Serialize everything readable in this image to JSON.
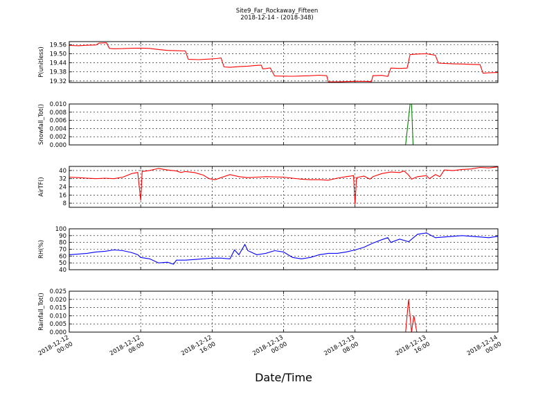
{
  "figure": {
    "title": "Site9_Far_Rockaway_Fifteen",
    "subtitle": "2018-12-14 - (2018-348)",
    "xlabel": "Date/Time"
  },
  "chart_data": {
    "type": "line",
    "title": "Site9_Far_Rockaway_Fifteen",
    "subtitle": "2018-12-14 - (2018-348)",
    "xlabel": "Date/Time",
    "x_range": [
      "2018-12-12 00:00",
      "2018-12-14 00:00"
    ],
    "x_ticks": [
      {
        "label_line1": "2018-12-12",
        "label_line2": "00:00",
        "value": "2018-12-12 00:00"
      },
      {
        "label_line1": "2018-12-12",
        "label_line2": "08:00",
        "value": "2018-12-12 08:00"
      },
      {
        "label_line1": "2018-12-12",
        "label_line2": "16:00",
        "value": "2018-12-12 16:00"
      },
      {
        "label_line1": "2018-12-13",
        "label_line2": "00:00",
        "value": "2018-12-13 00:00"
      },
      {
        "label_line1": "2018-12-13",
        "label_line2": "08:00",
        "value": "2018-12-13 08:00"
      },
      {
        "label_line1": "2018-12-13",
        "label_line2": "16:00",
        "value": "2018-12-13 16:00"
      },
      {
        "label_line1": "2018-12-14",
        "label_line2": "00:00",
        "value": "2018-12-14 00:00"
      }
    ],
    "grid": true,
    "panels": [
      {
        "ylabel": "P(unitless)",
        "color": "#ff0000",
        "ylim": [
          19.31,
          19.58
        ],
        "yticks": [
          19.32,
          19.38,
          19.44,
          19.5,
          19.56
        ],
        "ytick_labels": [
          "19.32",
          "19.38",
          "19.44",
          "19.50",
          "19.56"
        ],
        "points": [
          [
            "2018-12-12 00:00",
            19.555
          ],
          [
            "2018-12-12 01:00",
            19.553
          ],
          [
            "2018-12-12 02:00",
            19.556
          ],
          [
            "2018-12-12 03:00",
            19.558
          ],
          [
            "2018-12-12 03:20",
            19.57
          ],
          [
            "2018-12-12 04:10",
            19.572
          ],
          [
            "2018-12-12 04:30",
            19.535
          ],
          [
            "2018-12-12 05:00",
            19.533
          ],
          [
            "2018-12-12 06:00",
            19.534
          ],
          [
            "2018-12-12 07:00",
            19.536
          ],
          [
            "2018-12-12 08:00",
            19.537
          ],
          [
            "2018-12-12 09:00",
            19.535
          ],
          [
            "2018-12-12 10:00",
            19.528
          ],
          [
            "2018-12-12 11:00",
            19.522
          ],
          [
            "2018-12-12 12:00",
            19.52
          ],
          [
            "2018-12-12 13:00",
            19.518
          ],
          [
            "2018-12-12 13:20",
            19.463
          ],
          [
            "2018-12-12 14:30",
            19.461
          ],
          [
            "2018-12-12 15:30",
            19.464
          ],
          [
            "2018-12-12 16:30",
            19.468
          ],
          [
            "2018-12-12 17:00",
            19.472
          ],
          [
            "2018-12-12 17:20",
            19.413
          ],
          [
            "2018-12-12 18:00",
            19.41
          ],
          [
            "2018-12-12 19:00",
            19.415
          ],
          [
            "2018-12-12 20:00",
            19.418
          ],
          [
            "2018-12-12 21:00",
            19.423
          ],
          [
            "2018-12-12 21:30",
            19.425
          ],
          [
            "2018-12-12 21:40",
            19.4
          ],
          [
            "2018-12-12 22:00",
            19.402
          ],
          [
            "2018-12-12 22:30",
            19.406
          ],
          [
            "2018-12-12 23:00",
            19.353
          ],
          [
            "2018-12-13 00:00",
            19.352
          ],
          [
            "2018-12-13 01:00",
            19.351
          ],
          [
            "2018-12-13 02:00",
            19.353
          ],
          [
            "2018-12-13 03:00",
            19.355
          ],
          [
            "2018-12-13 04:00",
            19.358
          ],
          [
            "2018-12-13 04:50",
            19.355
          ],
          [
            "2018-12-13 05:00",
            19.315
          ],
          [
            "2018-12-13 06:00",
            19.314
          ],
          [
            "2018-12-13 07:00",
            19.316
          ],
          [
            "2018-12-13 08:00",
            19.318
          ],
          [
            "2018-12-13 09:00",
            19.318
          ],
          [
            "2018-12-13 09:50",
            19.316
          ],
          [
            "2018-12-13 10:00",
            19.355
          ],
          [
            "2018-12-13 11:00",
            19.357
          ],
          [
            "2018-12-13 11:40",
            19.35
          ],
          [
            "2018-12-13 12:00",
            19.405
          ],
          [
            "2018-12-13 13:00",
            19.403
          ],
          [
            "2018-12-13 13:50",
            19.405
          ],
          [
            "2018-12-13 14:10",
            19.495
          ],
          [
            "2018-12-13 15:00",
            19.498
          ],
          [
            "2018-12-13 16:00",
            19.5
          ],
          [
            "2018-12-13 16:30",
            19.495
          ],
          [
            "2018-12-13 17:00",
            19.49
          ],
          [
            "2018-12-13 17:20",
            19.438
          ],
          [
            "2018-12-13 18:00",
            19.436
          ],
          [
            "2018-12-13 19:00",
            19.433
          ],
          [
            "2018-12-13 20:00",
            19.432
          ],
          [
            "2018-12-13 21:00",
            19.43
          ],
          [
            "2018-12-13 22:00",
            19.428
          ],
          [
            "2018-12-13 22:20",
            19.372
          ],
          [
            "2018-12-13 23:00",
            19.374
          ],
          [
            "2018-12-14 00:00",
            19.376
          ]
        ]
      },
      {
        "ylabel": "Snowfall_Tot()",
        "color": "#008000",
        "ylim": [
          0.0,
          0.01
        ],
        "yticks": [
          0.0,
          0.002,
          0.004,
          0.006,
          0.008,
          0.01
        ],
        "ytick_labels": [
          "0.000",
          "0.002",
          "0.004",
          "0.006",
          "0.008",
          "0.010"
        ],
        "points": [
          [
            "2018-12-12 00:00",
            0.0
          ],
          [
            "2018-12-13 13:40",
            0.0
          ],
          [
            "2018-12-13 14:10",
            0.01
          ],
          [
            "2018-12-13 14:20",
            0.01
          ],
          [
            "2018-12-13 14:30",
            0.0
          ],
          [
            "2018-12-14 00:00",
            0.0
          ]
        ]
      },
      {
        "ylabel": "AirTF()",
        "color": "#ff0000",
        "ylim": [
          4,
          44
        ],
        "yticks": [
          8,
          16,
          24,
          32,
          40
        ],
        "ytick_labels": [
          "8",
          "16",
          "24",
          "32",
          "40"
        ],
        "points": [
          [
            "2018-12-12 00:00",
            33.5
          ],
          [
            "2018-12-12 01:00",
            33.0
          ],
          [
            "2018-12-12 02:00",
            32.5
          ],
          [
            "2018-12-12 03:00",
            32.0
          ],
          [
            "2018-12-12 04:00",
            32.5
          ],
          [
            "2018-12-12 05:00",
            32.0
          ],
          [
            "2018-12-12 06:00",
            33.5
          ],
          [
            "2018-12-12 07:00",
            37.0
          ],
          [
            "2018-12-12 07:40",
            38.0
          ],
          [
            "2018-12-12 08:00",
            10.5
          ],
          [
            "2018-12-12 08:10",
            39.0
          ],
          [
            "2018-12-12 09:00",
            40.0
          ],
          [
            "2018-12-12 10:00",
            42.0
          ],
          [
            "2018-12-12 11:00",
            40.5
          ],
          [
            "2018-12-12 12:00",
            39.5
          ],
          [
            "2018-12-12 12:30",
            38.0
          ],
          [
            "2018-12-12 13:00",
            39.0
          ],
          [
            "2018-12-12 14:00",
            38.0
          ],
          [
            "2018-12-12 15:00",
            35.5
          ],
          [
            "2018-12-12 15:40",
            32.0
          ],
          [
            "2018-12-12 16:20",
            31.0
          ],
          [
            "2018-12-12 17:00",
            33.0
          ],
          [
            "2018-12-12 18:00",
            36.0
          ],
          [
            "2018-12-12 19:00",
            34.0
          ],
          [
            "2018-12-12 20:00",
            33.0
          ],
          [
            "2018-12-12 21:00",
            33.5
          ],
          [
            "2018-12-12 22:00",
            34.0
          ],
          [
            "2018-12-13 00:00",
            33.5
          ],
          [
            "2018-12-13 01:00",
            32.5
          ],
          [
            "2018-12-13 02:00",
            31.5
          ],
          [
            "2018-12-13 03:00",
            31.0
          ],
          [
            "2018-12-13 04:00",
            31.0
          ],
          [
            "2018-12-13 05:00",
            30.5
          ],
          [
            "2018-12-13 06:00",
            32.5
          ],
          [
            "2018-12-13 07:00",
            34.0
          ],
          [
            "2018-12-13 07:50",
            35.0
          ],
          [
            "2018-12-13 08:00",
            7.0
          ],
          [
            "2018-12-13 08:10",
            33.0
          ],
          [
            "2018-12-13 09:00",
            34.5
          ],
          [
            "2018-12-13 09:40",
            31.5
          ],
          [
            "2018-12-13 10:00",
            34.0
          ],
          [
            "2018-12-13 11:00",
            37.0
          ],
          [
            "2018-12-13 12:00",
            38.5
          ],
          [
            "2018-12-13 13:00",
            38.0
          ],
          [
            "2018-12-13 13:30",
            39.5
          ],
          [
            "2018-12-13 14:00",
            35.5
          ],
          [
            "2018-12-13 14:20",
            31.5
          ],
          [
            "2018-12-13 15:00",
            34.0
          ],
          [
            "2018-12-13 16:00",
            35.0
          ],
          [
            "2018-12-13 16:20",
            32.0
          ],
          [
            "2018-12-13 17:00",
            36.0
          ],
          [
            "2018-12-13 17:30",
            34.0
          ],
          [
            "2018-12-13 18:00",
            40.5
          ],
          [
            "2018-12-13 19:00",
            40.0
          ],
          [
            "2018-12-13 20:00",
            41.0
          ],
          [
            "2018-12-13 21:00",
            41.5
          ],
          [
            "2018-12-13 22:00",
            43.0
          ],
          [
            "2018-12-13 23:00",
            42.5
          ],
          [
            "2018-12-14 00:00",
            43.5
          ]
        ]
      },
      {
        "ylabel": "RH(%)",
        "color": "#0000ff",
        "ylim": [
          40,
          100
        ],
        "yticks": [
          40,
          50,
          60,
          70,
          80,
          90,
          100
        ],
        "ytick_labels": [
          "40",
          "50",
          "60",
          "70",
          "80",
          "90",
          "100"
        ],
        "points": [
          [
            "2018-12-12 00:00",
            62
          ],
          [
            "2018-12-12 01:00",
            63
          ],
          [
            "2018-12-12 02:00",
            64
          ],
          [
            "2018-12-12 03:00",
            66
          ],
          [
            "2018-12-12 04:00",
            67
          ],
          [
            "2018-12-12 05:00",
            69
          ],
          [
            "2018-12-12 06:00",
            68
          ],
          [
            "2018-12-12 07:00",
            65
          ],
          [
            "2018-12-12 07:40",
            62
          ],
          [
            "2018-12-12 08:00",
            58
          ],
          [
            "2018-12-12 09:00",
            56
          ],
          [
            "2018-12-12 10:00",
            50
          ],
          [
            "2018-12-12 11:00",
            51
          ],
          [
            "2018-12-12 11:40",
            48
          ],
          [
            "2018-12-12 12:00",
            54
          ],
          [
            "2018-12-12 13:00",
            54
          ],
          [
            "2018-12-12 14:00",
            55
          ],
          [
            "2018-12-12 15:00",
            56
          ],
          [
            "2018-12-12 16:00",
            57
          ],
          [
            "2018-12-12 17:00",
            57
          ],
          [
            "2018-12-12 18:00",
            56
          ],
          [
            "2018-12-12 18:30",
            69
          ],
          [
            "2018-12-12 19:00",
            62
          ],
          [
            "2018-12-12 19:40",
            77
          ],
          [
            "2018-12-12 20:00",
            68
          ],
          [
            "2018-12-12 21:00",
            62
          ],
          [
            "2018-12-12 22:00",
            64
          ],
          [
            "2018-12-12 23:00",
            68
          ],
          [
            "2018-12-13 00:00",
            66
          ],
          [
            "2018-12-13 01:00",
            58
          ],
          [
            "2018-12-13 02:00",
            56
          ],
          [
            "2018-12-13 03:00",
            58
          ],
          [
            "2018-12-13 04:00",
            62
          ],
          [
            "2018-12-13 05:00",
            64
          ],
          [
            "2018-12-13 06:00",
            64
          ],
          [
            "2018-12-13 07:00",
            66
          ],
          [
            "2018-12-13 08:00",
            69
          ],
          [
            "2018-12-13 09:00",
            73
          ],
          [
            "2018-12-13 10:00",
            79
          ],
          [
            "2018-12-13 11:00",
            84
          ],
          [
            "2018-12-13 11:40",
            87
          ],
          [
            "2018-12-13 12:00",
            80
          ],
          [
            "2018-12-13 13:00",
            85
          ],
          [
            "2018-12-13 14:00",
            81
          ],
          [
            "2018-12-13 15:00",
            92
          ],
          [
            "2018-12-13 16:00",
            94
          ],
          [
            "2018-12-13 17:00",
            87
          ],
          [
            "2018-12-13 18:00",
            88
          ],
          [
            "2018-12-13 19:00",
            89
          ],
          [
            "2018-12-13 20:00",
            90
          ],
          [
            "2018-12-13 21:00",
            89
          ],
          [
            "2018-12-13 22:00",
            88
          ],
          [
            "2018-12-13 23:00",
            87
          ],
          [
            "2018-12-14 00:00",
            89
          ]
        ]
      },
      {
        "ylabel": "Rainfall_Tot()",
        "color": "#ff0000",
        "ylim": [
          0.0,
          0.025
        ],
        "yticks": [
          0.0,
          0.005,
          0.01,
          0.015,
          0.02,
          0.025
        ],
        "ytick_labels": [
          "0.000",
          "0.005",
          "0.010",
          "0.015",
          "0.020",
          "0.025"
        ],
        "points": [
          [
            "2018-12-12 00:00",
            0.0
          ],
          [
            "2018-12-13 13:40",
            0.0
          ],
          [
            "2018-12-13 14:00",
            0.02
          ],
          [
            "2018-12-13 14:20",
            0.0
          ],
          [
            "2018-12-13 14:35",
            0.01
          ],
          [
            "2018-12-13 14:55",
            0.0
          ],
          [
            "2018-12-14 00:00",
            0.0
          ]
        ]
      }
    ]
  }
}
